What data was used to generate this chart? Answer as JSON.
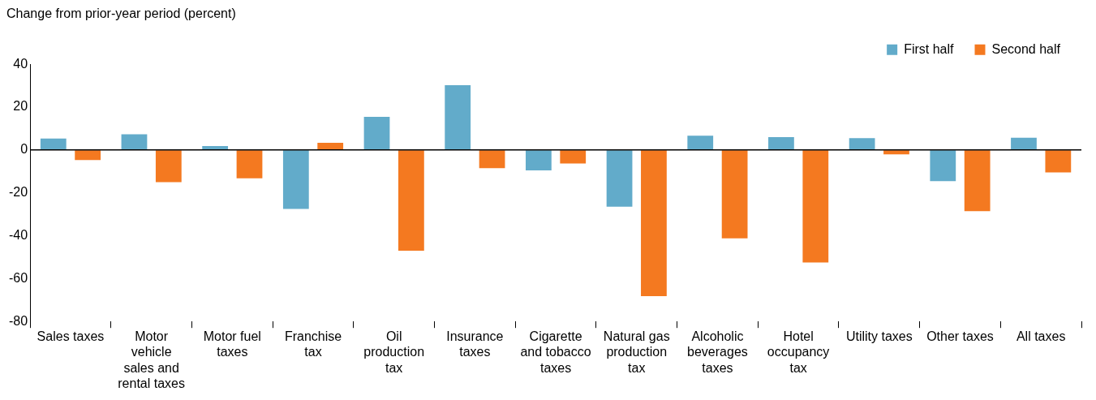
{
  "chart_data": {
    "type": "bar",
    "ylabel": "Change from prior-year period (percent)",
    "categories": [
      "Sales taxes",
      "Motor vehicle sales and rental taxes",
      "Motor fuel taxes",
      "Franchise tax",
      "Oil production tax",
      "Insurance taxes",
      "Cigarette and tobacco taxes",
      "Natural gas production tax",
      "Alcoholic beverages taxes",
      "Hotel occupancy tax",
      "Utility taxes",
      "Other taxes",
      "All taxes"
    ],
    "series": [
      {
        "name": "First half",
        "color": "#62abca",
        "values": [
          5.3,
          7.3,
          1.8,
          -27.5,
          15.5,
          30.2,
          -9.5,
          -26.5,
          6.7,
          6,
          5.5,
          -14.5,
          5.7
        ]
      },
      {
        "name": "Second half",
        "color": "#f47920",
        "values": [
          -4.7,
          -15,
          -13.2,
          3.4,
          -47,
          -8.5,
          -6.3,
          -68.2,
          -41.2,
          -52.5,
          -2,
          -28.5,
          -10.5
        ]
      }
    ],
    "ylim": [
      -80,
      40
    ],
    "yticks": [
      -80,
      -60,
      -40,
      -20,
      0,
      20,
      40
    ],
    "ref_lines": [
      {
        "axis": "y",
        "value": 0,
        "color": "#000000"
      }
    ],
    "grid": false,
    "legend": "top right"
  }
}
